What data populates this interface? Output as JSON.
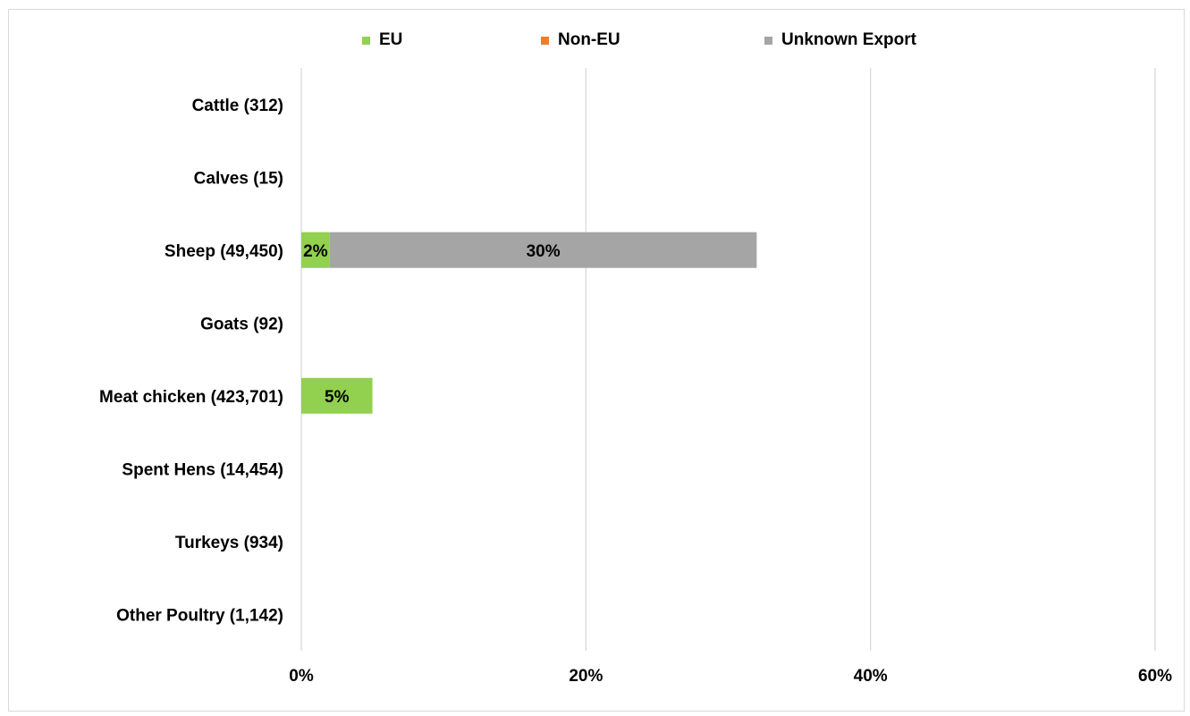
{
  "chart_data": {
    "type": "bar",
    "orientation": "horizontal",
    "stacked": true,
    "categories": [
      "Cattle (312)",
      "Calves (15)",
      "Sheep (49,450)",
      "Goats (92)",
      "Meat chicken (423,701)",
      "Spent Hens (14,454)",
      "Turkeys (934)",
      "Other Poultry (1,142)"
    ],
    "series": [
      {
        "name": "EU",
        "color": "#92d050",
        "values": [
          0,
          0,
          2,
          0,
          5,
          0,
          0,
          0
        ],
        "labels": [
          "",
          "",
          "2%",
          "",
          "5%",
          "",
          "",
          ""
        ]
      },
      {
        "name": "Non-EU",
        "color": "#ed7d31",
        "values": [
          0,
          0,
          0,
          0,
          0,
          0,
          0,
          0
        ],
        "labels": [
          "",
          "",
          "",
          "",
          "",
          "",
          "",
          ""
        ]
      },
      {
        "name": "Unknown Export",
        "color": "#a5a5a5",
        "values": [
          0,
          0,
          30,
          0,
          0,
          0,
          0,
          0
        ],
        "labels": [
          "",
          "",
          "30%",
          "",
          "",
          "",
          "",
          ""
        ]
      }
    ],
    "xlim": [
      0,
      60
    ],
    "xticks": [
      "0%",
      "20%",
      "40%",
      "60%"
    ],
    "xtick_values": [
      0,
      20,
      40,
      60
    ],
    "grid": true,
    "legend_position": "top"
  }
}
